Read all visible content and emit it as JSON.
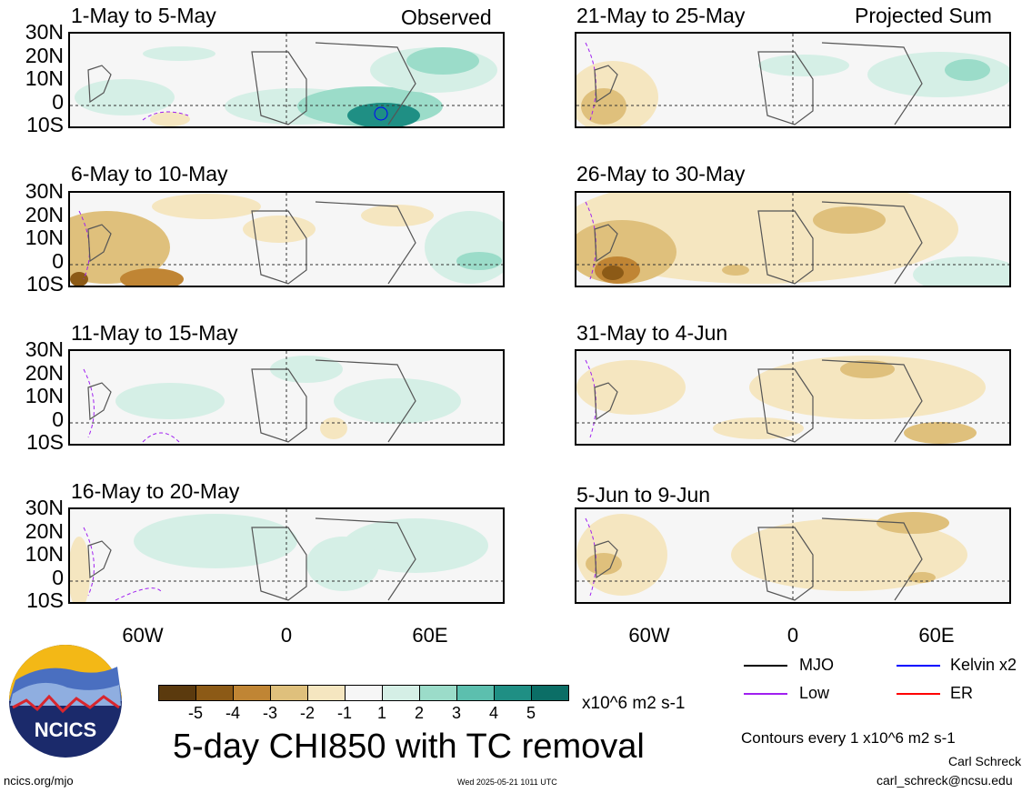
{
  "headers": {
    "left": "Observed",
    "right": "Projected Sum"
  },
  "panels_left": [
    {
      "title": "1-May to 5-May"
    },
    {
      "title": "6-May to 10-May"
    },
    {
      "title": "11-May to 15-May"
    },
    {
      "title": "16-May to 20-May"
    }
  ],
  "panels_right": [
    {
      "title": "21-May to 25-May"
    },
    {
      "title": "26-May to 30-May"
    },
    {
      "title": "31-May to 4-Jun"
    },
    {
      "title": "5-Jun to 9-Jun"
    }
  ],
  "lat_labels": [
    "30N",
    "20N",
    "10N",
    "0",
    "10S"
  ],
  "lon_labels": [
    "60W",
    "0",
    "60E"
  ],
  "colorbar": {
    "colors": [
      "#5b3a0e",
      "#8c5a16",
      "#c08534",
      "#dfc07c",
      "#f5e6c0",
      "#f6f6f6",
      "#d5efe6",
      "#9bdcc9",
      "#5cbfae",
      "#1f8f84",
      "#0b6e66"
    ],
    "labels": [
      "-5",
      "-4",
      "-3",
      "-2",
      "-1",
      "1",
      "2",
      "3",
      "4",
      "5"
    ],
    "unit": "x10^6 m2 s-1"
  },
  "legend": {
    "items": [
      {
        "label": "MJO",
        "color": "#000000"
      },
      {
        "label": "Kelvin x2",
        "color": "#0000ff"
      },
      {
        "label": "Low",
        "color": "#a020f0"
      },
      {
        "label": "ER",
        "color": "#ff0000"
      }
    ],
    "contours": "Contours every 1 x10^6 m2 s-1"
  },
  "title": "5-day CHI850 with TC removal",
  "logo_text": "NCICS",
  "footer": {
    "url": "ncics.org/mjo",
    "timestamp": "Wed 2025-05-21 1011 UTC",
    "author": "Carl Schreck",
    "email": "carl_schreck@ncsu.edu"
  }
}
